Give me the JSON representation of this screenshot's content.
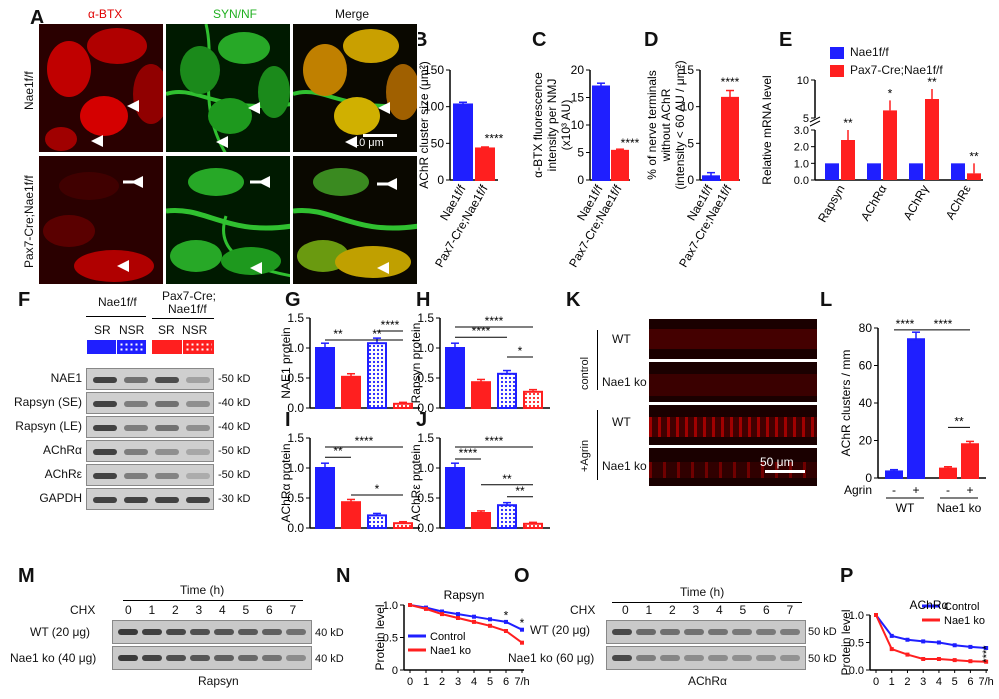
{
  "panels": {
    "A": "A",
    "B": "B",
    "C": "C",
    "D": "D",
    "E": "E",
    "F": "F",
    "G": "G",
    "H": "H",
    "I": "I",
    "J": "J",
    "K": "K",
    "L": "L",
    "M": "M",
    "N": "N",
    "O": "O",
    "P": "P"
  },
  "colors": {
    "control": "#1f1fff",
    "ko": "#ff1f1f",
    "red_channel": "#e00000",
    "green_channel": "#20c020"
  },
  "A": {
    "col1": "α-BTX",
    "col2": "SYN/NF",
    "col3": "Merge",
    "row1": "Nae1f/f",
    "row2": "Pax7-Cre;Nae1f/f",
    "scale": "10 μm"
  },
  "legend_E": {
    "ctrl": "Nae1f/f",
    "ko": "Pax7-Cre;Nae1f/f"
  },
  "F": {
    "group1": "Nae1f/f",
    "group2a": "Pax7-Cre;",
    "group2b": "Nae1f/f",
    "lanes": [
      "SR",
      "NSR",
      "SR",
      "NSR"
    ],
    "rows": [
      "NAE1",
      "Rapsyn (SE)",
      "Rapsyn (LE)",
      "AChRα",
      "AChRε",
      "GAPDH"
    ],
    "kd": [
      "50 kD",
      "40 kD",
      "40 kD",
      "50 kD",
      "50 kD",
      "30 kD"
    ]
  },
  "K": {
    "ctrl": "control",
    "agrin": "+Agrin",
    "wt": "WT",
    "ko": "Nae1 ko",
    "scale": "50 μm"
  },
  "M": {
    "time": "Time (h)",
    "chx": "CHX",
    "hours": [
      "0",
      "1",
      "2",
      "3",
      "4",
      "5",
      "6",
      "7"
    ],
    "row1": "WT (20 μg)",
    "row2": "Nae1 ko (40 μg)",
    "kd": "40 kD",
    "protein": "Rapsyn"
  },
  "O": {
    "time": "Time (h)",
    "chx": "CHX",
    "hours": [
      "0",
      "1",
      "2",
      "3",
      "4",
      "5",
      "6",
      "7"
    ],
    "row1": "WT (20 μg)",
    "row2": "Nae1 ko (60 μg)",
    "kd": "50 kD",
    "protein": "AChRα"
  },
  "chart_data": [
    {
      "id": "B",
      "type": "bar",
      "ylabel": "AChR cluster size (μm²)",
      "ylim": [
        0,
        150
      ],
      "yticks": [
        0,
        50,
        100,
        150
      ],
      "categories": [
        "Nae1f/f",
        "Pax7-Cre;Nae1f/f"
      ],
      "values": [
        103,
        43
      ],
      "errors": [
        3,
        2
      ],
      "stars": [
        "",
        "****"
      ]
    },
    {
      "id": "C",
      "type": "bar",
      "ylabel": "α-BTX fluorescence intensity per NMJ (x10³ AU)",
      "ylim": [
        0,
        20
      ],
      "yticks": [
        0,
        5,
        10,
        15,
        20
      ],
      "categories": [
        "Nae1f/f",
        "Pax7-Cre;Nae1f/f"
      ],
      "values": [
        17,
        5.3
      ],
      "errors": [
        0.6,
        0.3
      ],
      "stars": [
        "",
        "****"
      ]
    },
    {
      "id": "D",
      "type": "bar",
      "ylabel": "% of nerve terminals without AChR (intensity < 60 AU / μm²)",
      "ylim": [
        0,
        15
      ],
      "yticks": [
        0,
        5,
        10,
        15
      ],
      "categories": [
        "Nae1f/f",
        "Pax7-Cre;Nae1f/f"
      ],
      "values": [
        0.5,
        11.2
      ],
      "errors": [
        0.5,
        1.0
      ],
      "stars": [
        "",
        "****"
      ]
    },
    {
      "id": "E",
      "type": "bar",
      "ylabel": "Relative mRNA level",
      "categories": [
        "Rapsyn",
        "AChRα",
        "AChRγ",
        "AChRε"
      ],
      "series": [
        {
          "name": "Nae1f/f",
          "values": [
            1,
            1,
            1,
            1
          ]
        },
        {
          "name": "Pax7-Cre;Nae1f/f",
          "values": [
            2.4,
            6,
            7.5,
            0.4
          ]
        }
      ],
      "yticks": [
        "0.0",
        "1.0",
        "2.0",
        "3.0",
        "5",
        "10"
      ],
      "stars": [
        "**",
        "*",
        "**",
        "**"
      ]
    },
    {
      "id": "G",
      "type": "bar",
      "ylabel": "NAE1 protein",
      "ylim": [
        0,
        1.5
      ],
      "yticks": [
        "0.0",
        "0.5",
        "1.0",
        "1.5"
      ],
      "values": [
        1.0,
        0.52,
        1.08,
        0.07
      ],
      "fills": [
        "solid-blue",
        "solid-red",
        "dots-blue",
        "dots-red"
      ],
      "sig": [
        {
          "label": "**"
        },
        {
          "label": "**"
        },
        {
          "label": "****"
        }
      ]
    },
    {
      "id": "H",
      "type": "bar",
      "ylabel": "Rapsyn protein",
      "ylim": [
        0,
        1.5
      ],
      "yticks": [
        "0.0",
        "0.5",
        "1.0",
        "1.5"
      ],
      "values": [
        1.0,
        0.43,
        0.57,
        0.27
      ],
      "sig": [
        {
          "label": "****"
        },
        {
          "label": "****"
        },
        {
          "label": "*"
        }
      ]
    },
    {
      "id": "I",
      "type": "bar",
      "ylabel": "AChRα protein",
      "ylim": [
        0,
        1.5
      ],
      "yticks": [
        "0.0",
        "0.5",
        "1.0",
        "1.5"
      ],
      "values": [
        1.0,
        0.43,
        0.21,
        0.08
      ],
      "sig": [
        {
          "label": "****"
        },
        {
          "label": "**"
        },
        {
          "label": "*"
        }
      ]
    },
    {
      "id": "J",
      "type": "bar",
      "ylabel": "AChRε protein",
      "ylim": [
        0,
        1.5
      ],
      "yticks": [
        "0.0",
        "0.5",
        "1.0",
        "1.5"
      ],
      "values": [
        1.0,
        0.25,
        0.38,
        0.07
      ],
      "sig": [
        {
          "label": "****"
        },
        {
          "label": "****"
        },
        {
          "label": "**"
        },
        {
          "label": "**"
        }
      ]
    },
    {
      "id": "L",
      "type": "bar",
      "ylabel": "AChR clusters / mm",
      "ylim": [
        0,
        80
      ],
      "yticks": [
        0,
        20,
        40,
        60,
        80
      ],
      "categories": [
        "WT -",
        "WT +",
        "Nae1 ko -",
        "Nae1 ko +"
      ],
      "values": [
        3.5,
        74,
        5,
        18
      ],
      "xrow": [
        "Agrin",
        "-",
        "+",
        "-",
        "+"
      ],
      "groups": [
        "WT",
        "Nae1 ko"
      ],
      "sig": [
        {
          "label": "****"
        },
        {
          "label": "****"
        },
        {
          "label": "**"
        }
      ]
    },
    {
      "id": "N",
      "type": "line",
      "title": "Rapsyn",
      "ylabel": "Protein level",
      "ylim": [
        0,
        1.0
      ],
      "yticks": [
        "0",
        "0.5",
        "1.0"
      ],
      "x": [
        0,
        1,
        2,
        3,
        4,
        5,
        6,
        7
      ],
      "xunit": "/h",
      "series": [
        {
          "name": "Control",
          "values": [
            1.0,
            0.96,
            0.9,
            0.86,
            0.82,
            0.78,
            0.74,
            0.62
          ]
        },
        {
          "name": "Nae1 ko",
          "values": [
            1.0,
            0.94,
            0.86,
            0.8,
            0.74,
            0.68,
            0.6,
            0.42
          ]
        }
      ],
      "stars": [
        "*",
        "*"
      ]
    },
    {
      "id": "P",
      "type": "line",
      "title": "AChRα",
      "ylabel": "Protein level",
      "ylim": [
        0,
        1.0
      ],
      "yticks": [
        "0.0",
        "0.5",
        "1.0"
      ],
      "x": [
        0,
        1,
        2,
        3,
        4,
        5,
        6,
        7
      ],
      "xunit": "/h",
      "series": [
        {
          "name": "Control",
          "values": [
            1.0,
            0.62,
            0.55,
            0.52,
            0.5,
            0.45,
            0.42,
            0.4
          ]
        },
        {
          "name": "Nae1 ko",
          "values": [
            1.0,
            0.38,
            0.28,
            0.2,
            0.2,
            0.18,
            0.16,
            0.15
          ]
        }
      ],
      "stars": [
        "****"
      ]
    }
  ]
}
